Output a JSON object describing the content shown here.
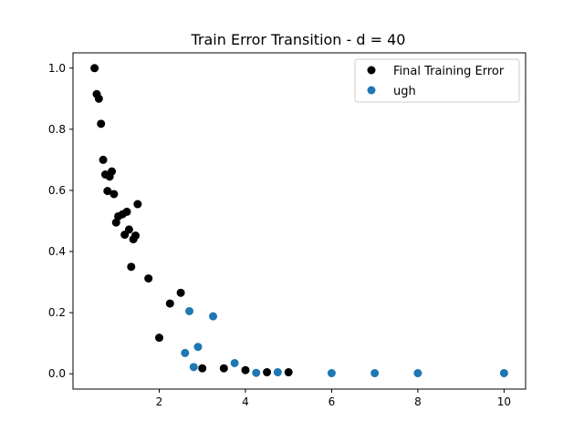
{
  "chart_data": {
    "type": "scatter",
    "title": "Train Error Transition - d = 40",
    "xlabel": "",
    "ylabel": "",
    "xlim": [
      0.0,
      10.5
    ],
    "ylim": [
      -0.05,
      1.05
    ],
    "x_ticks": [
      2,
      4,
      6,
      8,
      10
    ],
    "x_tick_labels": [
      "2",
      "4",
      "6",
      "8",
      "10"
    ],
    "y_ticks": [
      0.0,
      0.2,
      0.4,
      0.6,
      0.8,
      1.0
    ],
    "y_tick_labels": [
      "0.0",
      "0.2",
      "0.4",
      "0.6",
      "0.8",
      "1.0"
    ],
    "grid": false,
    "legend_position": "top-right",
    "series": [
      {
        "name": "Final Training Error",
        "color": "#000000",
        "points": [
          [
            0.5,
            1.0
          ],
          [
            0.55,
            0.915
          ],
          [
            0.6,
            0.9
          ],
          [
            0.65,
            0.818
          ],
          [
            0.7,
            0.7
          ],
          [
            0.75,
            0.652
          ],
          [
            0.8,
            0.598
          ],
          [
            0.85,
            0.645
          ],
          [
            0.9,
            0.662
          ],
          [
            0.95,
            0.588
          ],
          [
            1.0,
            0.495
          ],
          [
            1.05,
            0.515
          ],
          [
            1.15,
            0.522
          ],
          [
            1.2,
            0.455
          ],
          [
            1.25,
            0.53
          ],
          [
            1.3,
            0.472
          ],
          [
            1.35,
            0.35
          ],
          [
            1.4,
            0.44
          ],
          [
            1.45,
            0.452
          ],
          [
            1.5,
            0.555
          ],
          [
            1.75,
            0.312
          ],
          [
            2.0,
            0.118
          ],
          [
            2.25,
            0.23
          ],
          [
            2.5,
            0.265
          ],
          [
            3.0,
            0.018
          ],
          [
            3.5,
            0.018
          ],
          [
            4.0,
            0.012
          ],
          [
            4.5,
            0.005
          ],
          [
            5.0,
            0.005
          ]
        ]
      },
      {
        "name": "ugh",
        "color": "#1f77b4",
        "points": [
          [
            2.6,
            0.068
          ],
          [
            2.7,
            0.205
          ],
          [
            2.8,
            0.022
          ],
          [
            2.9,
            0.088
          ],
          [
            3.25,
            0.188
          ],
          [
            3.75,
            0.035
          ],
          [
            4.25,
            0.003
          ],
          [
            4.75,
            0.005
          ],
          [
            6.0,
            0.002
          ],
          [
            7.0,
            0.002
          ],
          [
            8.0,
            0.002
          ],
          [
            10.0,
            0.002
          ]
        ]
      }
    ]
  }
}
